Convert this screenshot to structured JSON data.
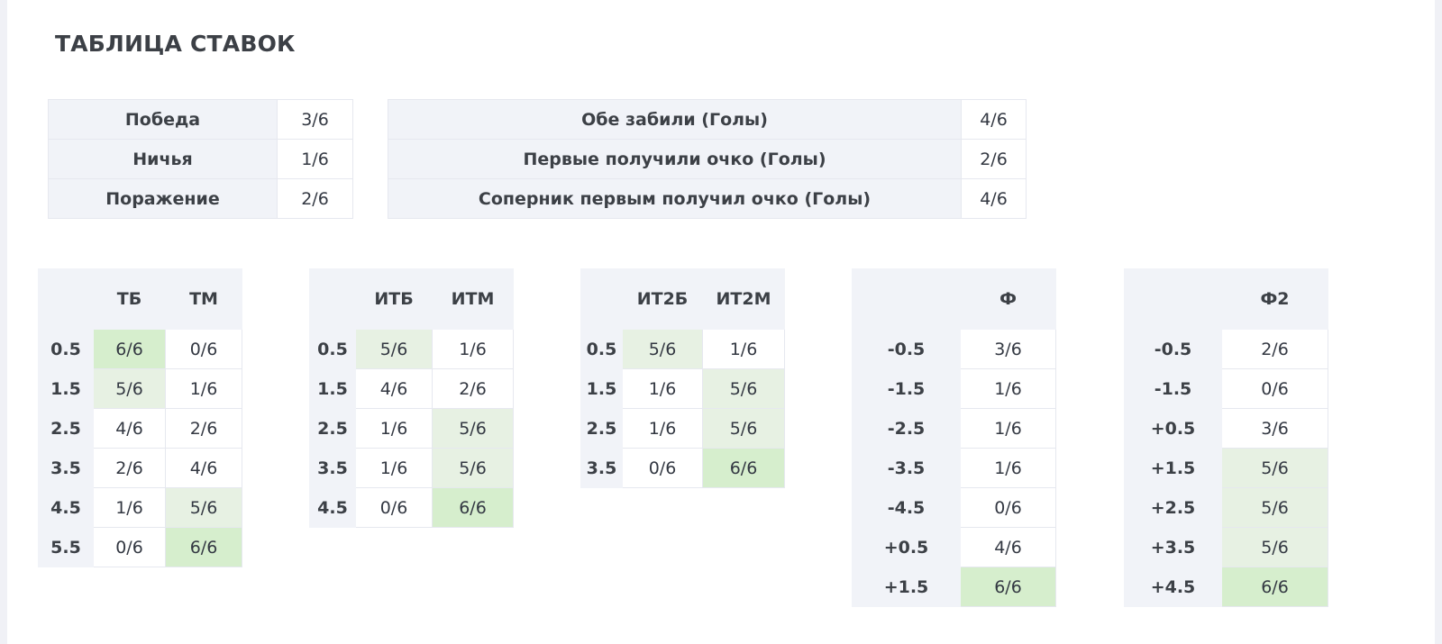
{
  "title": "ТАБЛИЦА СТАВОК",
  "results": [
    {
      "label": "Победа",
      "value": "3/6"
    },
    {
      "label": "Ничья",
      "value": "1/6"
    },
    {
      "label": "Поражение",
      "value": "2/6"
    }
  ],
  "goals": [
    {
      "label": "Обе забили (Голы)",
      "value": "4/6"
    },
    {
      "label": "Первые получили очко (Голы)",
      "value": "2/6"
    },
    {
      "label": "Соперник первым получил очко (Голы)",
      "value": "4/6"
    }
  ],
  "colors": {
    "highlight_light": "#e7f1e3",
    "highlight_strong": "#d6eecd",
    "header_bg": "#f1f3f8"
  },
  "totals": {
    "headers": [
      "ТБ",
      "ТМ"
    ],
    "rows": [
      {
        "line": "0.5",
        "a": "6/6",
        "b": "0/6"
      },
      {
        "line": "1.5",
        "a": "5/6",
        "b": "1/6"
      },
      {
        "line": "2.5",
        "a": "4/6",
        "b": "2/6"
      },
      {
        "line": "3.5",
        "a": "2/6",
        "b": "4/6"
      },
      {
        "line": "4.5",
        "a": "1/6",
        "b": "5/6"
      },
      {
        "line": "5.5",
        "a": "0/6",
        "b": "6/6"
      }
    ]
  },
  "team1_totals": {
    "headers": [
      "ИТБ",
      "ИТМ"
    ],
    "rows": [
      {
        "line": "0.5",
        "a": "5/6",
        "b": "1/6"
      },
      {
        "line": "1.5",
        "a": "4/6",
        "b": "2/6"
      },
      {
        "line": "2.5",
        "a": "1/6",
        "b": "5/6"
      },
      {
        "line": "3.5",
        "a": "1/6",
        "b": "5/6"
      },
      {
        "line": "4.5",
        "a": "0/6",
        "b": "6/6"
      }
    ]
  },
  "team2_totals": {
    "headers": [
      "ИТ2Б",
      "ИТ2М"
    ],
    "rows": [
      {
        "line": "0.5",
        "a": "5/6",
        "b": "1/6"
      },
      {
        "line": "1.5",
        "a": "1/6",
        "b": "5/6"
      },
      {
        "line": "2.5",
        "a": "1/6",
        "b": "5/6"
      },
      {
        "line": "3.5",
        "a": "0/6",
        "b": "6/6"
      }
    ]
  },
  "handicap1": {
    "header": "Ф",
    "rows": [
      {
        "line": "-0.5",
        "v": "3/6"
      },
      {
        "line": "-1.5",
        "v": "1/6"
      },
      {
        "line": "-2.5",
        "v": "1/6"
      },
      {
        "line": "-3.5",
        "v": "1/6"
      },
      {
        "line": "-4.5",
        "v": "0/6"
      },
      {
        "line": "+0.5",
        "v": "4/6"
      },
      {
        "line": "+1.5",
        "v": "6/6"
      }
    ]
  },
  "handicap2": {
    "header": "Ф2",
    "rows": [
      {
        "line": "-0.5",
        "v": "2/6"
      },
      {
        "line": "-1.5",
        "v": "0/6"
      },
      {
        "line": "+0.5",
        "v": "3/6"
      },
      {
        "line": "+1.5",
        "v": "5/6"
      },
      {
        "line": "+2.5",
        "v": "5/6"
      },
      {
        "line": "+3.5",
        "v": "5/6"
      },
      {
        "line": "+4.5",
        "v": "6/6"
      }
    ]
  }
}
